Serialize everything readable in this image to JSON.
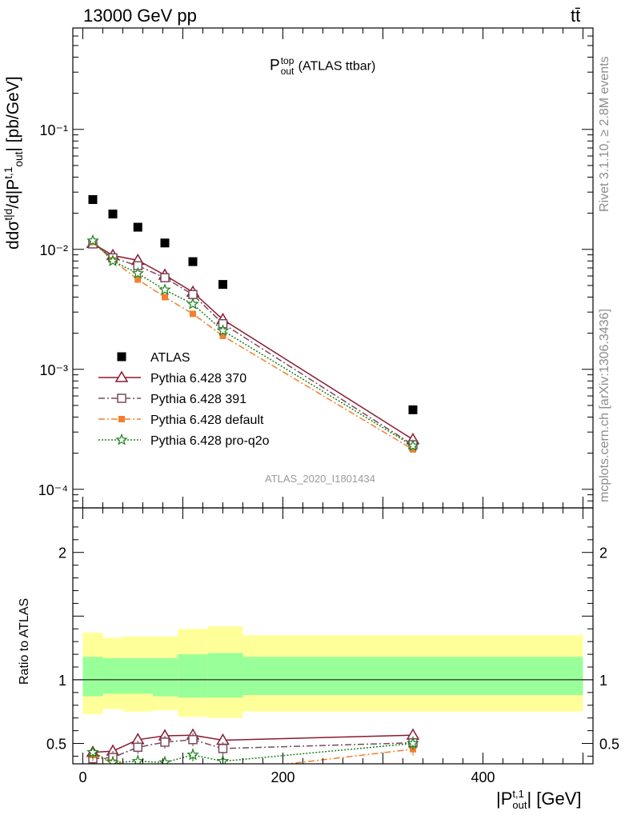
{
  "header": {
    "energy": "13000 GeV pp",
    "process": "tt̄"
  },
  "plot_title": {
    "main": "P",
    "sup": "top",
    "sub": "out",
    "suffix": "(ATLAS ttbar)"
  },
  "ylabel_top": {
    "prefix": "d",
    "num": "dσ",
    "num_sup": "t|d",
    "den": "d|P",
    "den_sup": "t,1",
    "den_sub": "out",
    "suffix": "| [pb/GeV]"
  },
  "ylabel_bottom": "Ratio to ATLAS",
  "xlabel": {
    "prefix": "|P",
    "sup": "t,1",
    "sub": "out",
    "suffix": "| [GeV]"
  },
  "analysis_tag": "ATLAS_2020_I1801434",
  "side_text": {
    "rivet": "Rivet 3.1.10, ≥ 2.8M events",
    "mcplots": "mcplots.cern.ch [arXiv:1306.3436]"
  },
  "colors": {
    "atlas": "#000000",
    "p370": "#8b1a2e",
    "p391": "#7a4a5e",
    "pdefault": "#f08030",
    "pq2o": "#188018",
    "band_outer": "#ffff99",
    "band_inner": "#99ff99"
  },
  "chart_data": [
    {
      "type": "scatter",
      "panel": "main",
      "yscale": "log",
      "xlim": [
        -10,
        510
      ],
      "ylim": [
        7e-05,
        0.7
      ],
      "ytick_labels": [
        "10⁻⁴",
        "10⁻³",
        "10⁻²",
        "10⁻¹"
      ],
      "ytick_values": [
        0.0001,
        0.001,
        0.01,
        0.1
      ],
      "legend_position": "lower-left",
      "x": [
        10,
        30,
        55,
        82,
        110,
        140,
        330
      ],
      "series": [
        {
          "name": "ATLAS",
          "marker": "square",
          "values": [
            0.026,
            0.0197,
            0.0153,
            0.0113,
            0.0079,
            0.0051,
            0.00046
          ]
        },
        {
          "name": "Pythia 6.428 370",
          "marker": "triangle",
          "line": "solid",
          "values": [
            0.0112,
            0.0089,
            0.0081,
            0.0061,
            0.0044,
            0.0026,
            0.00026
          ]
        },
        {
          "name": "Pythia 6.428 391",
          "marker": "open-square",
          "line": "dashdot",
          "values": [
            0.0111,
            0.0085,
            0.0073,
            0.0058,
            0.0042,
            0.0024,
            0.000235
          ]
        },
        {
          "name": "Pythia 6.428 default",
          "marker": "filled-square",
          "line": "dashdot",
          "values": [
            0.0115,
            0.0081,
            0.0056,
            0.004,
            0.0029,
            0.0019,
            0.000215
          ]
        },
        {
          "name": "Pythia 6.428 pro-q2o",
          "marker": "star",
          "line": "dotted",
          "values": [
            0.0118,
            0.008,
            0.0063,
            0.0046,
            0.0035,
            0.0021,
            0.00023
          ]
        }
      ]
    },
    {
      "type": "line",
      "panel": "ratio",
      "xlim": [
        -10,
        510
      ],
      "ylim": [
        0.34,
        2.35
      ],
      "ytick_labels": [
        "0.5",
        "1",
        "2"
      ],
      "ytick_values": [
        0.5,
        1,
        2
      ],
      "xtick_labels": [
        "0",
        "200",
        "400"
      ],
      "xtick_values": [
        0,
        200,
        400
      ],
      "x": [
        10,
        30,
        55,
        82,
        110,
        140,
        330
      ],
      "bands": {
        "edges": [
          0,
          20,
          40,
          70,
          95,
          125,
          160,
          500
        ],
        "outer_upper": [
          1.37,
          1.33,
          1.34,
          1.34,
          1.4,
          1.42,
          1.35
        ],
        "outer_lower": [
          0.73,
          0.77,
          0.75,
          0.76,
          0.71,
          0.7,
          0.75
        ],
        "inner_upper": [
          1.18,
          1.17,
          1.17,
          1.17,
          1.2,
          1.21,
          1.18
        ],
        "inner_lower": [
          0.87,
          0.89,
          0.89,
          0.87,
          0.86,
          0.86,
          0.88
        ]
      },
      "series": [
        {
          "name": "Pythia 6.428 370",
          "values": [
            0.43,
            0.44,
            0.53,
            0.56,
            0.565,
            0.525,
            0.565
          ]
        },
        {
          "name": "Pythia 6.428 391",
          "values": [
            0.38,
            0.39,
            0.47,
            0.51,
            0.53,
            0.46,
            0.505
          ]
        },
        {
          "name": "Pythia 6.428 default",
          "values": [
            0.41,
            0.35,
            0.33,
            0.31,
            0.29,
            0.28,
            0.455
          ]
        },
        {
          "name": "Pythia 6.428 pro-q2o",
          "values": [
            0.43,
            0.35,
            0.36,
            0.35,
            0.41,
            0.36,
            0.5
          ]
        }
      ]
    }
  ]
}
